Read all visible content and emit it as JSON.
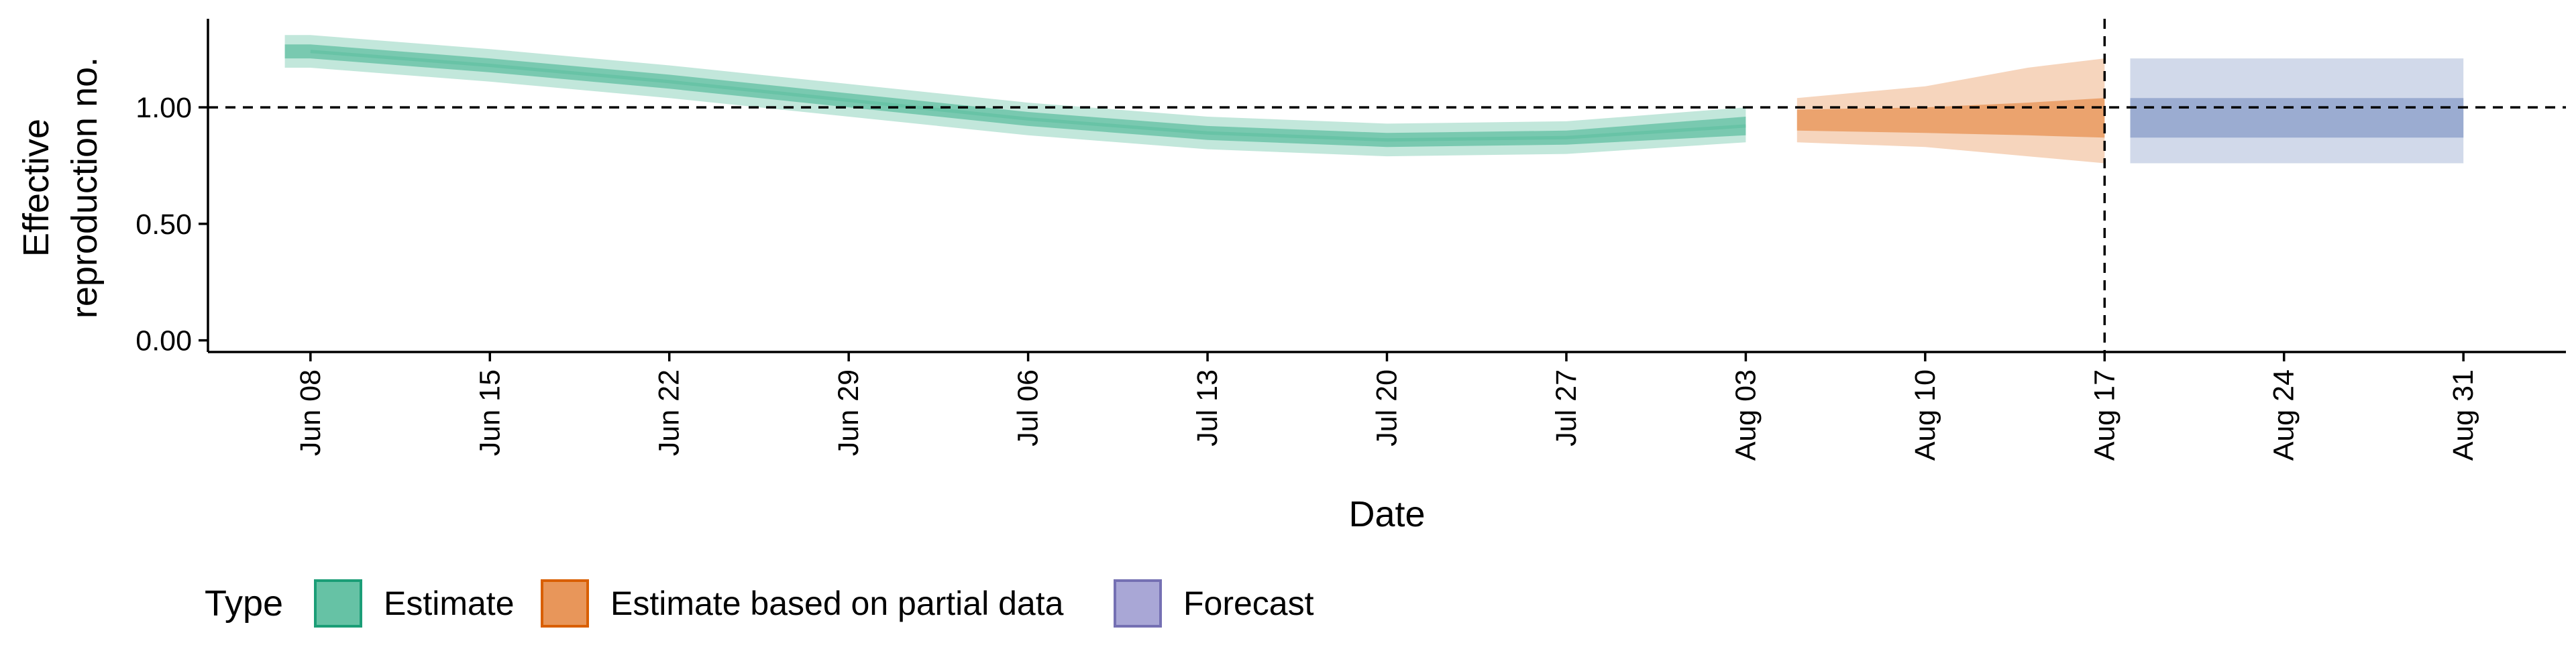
{
  "chart_data": {
    "type": "area",
    "xlabel": "Date",
    "ylabel": [
      "Effective",
      "reproduction no."
    ],
    "x_ticks": [
      "2020-06-08",
      "2020-06-15",
      "2020-06-22",
      "2020-06-29",
      "2020-07-06",
      "2020-07-13",
      "2020-07-20",
      "2020-07-27",
      "2020-08-03",
      "2020-08-10",
      "2020-08-17",
      "2020-08-24",
      "2020-08-31"
    ],
    "x_tick_labels": [
      "Jun 08",
      "Jun 15",
      "Jun 22",
      "Jun 29",
      "Jul 06",
      "Jul 13",
      "Jul 20",
      "Jul 27",
      "Aug 03",
      "Aug 10",
      "Aug 17",
      "Aug 24",
      "Aug 31"
    ],
    "y_ticks": [
      0.0,
      0.5,
      1.0
    ],
    "y_tick_labels": [
      "0.00",
      "0.50",
      "1.00"
    ],
    "xlim": [
      "2020-06-04",
      "2020-09-04"
    ],
    "ylim": [
      -0.05,
      1.38
    ],
    "reference_line_y": 1.0,
    "reference_line_x": "2020-08-17",
    "legend_position": "bottom-left",
    "legend_title": "Type",
    "series": [
      {
        "name": "Estimate",
        "color": "#66C2A5",
        "points": [
          {
            "x": "2020-06-08",
            "median": 1.24,
            "lower50": 1.21,
            "upper50": 1.27,
            "lower90": 1.17,
            "upper90": 1.31
          },
          {
            "x": "2020-06-15",
            "median": 1.18,
            "lower50": 1.15,
            "upper50": 1.21,
            "lower90": 1.11,
            "upper90": 1.25
          },
          {
            "x": "2020-06-22",
            "median": 1.11,
            "lower50": 1.08,
            "upper50": 1.14,
            "lower90": 1.04,
            "upper90": 1.18
          },
          {
            "x": "2020-06-29",
            "median": 1.03,
            "lower50": 1.0,
            "upper50": 1.06,
            "lower90": 0.96,
            "upper90": 1.1
          },
          {
            "x": "2020-07-06",
            "median": 0.95,
            "lower50": 0.92,
            "upper50": 0.98,
            "lower90": 0.88,
            "upper90": 1.02
          },
          {
            "x": "2020-07-13",
            "median": 0.89,
            "lower50": 0.86,
            "upper50": 0.92,
            "lower90": 0.82,
            "upper90": 0.96
          },
          {
            "x": "2020-07-20",
            "median": 0.86,
            "lower50": 0.83,
            "upper50": 0.89,
            "lower90": 0.79,
            "upper90": 0.93
          },
          {
            "x": "2020-07-27",
            "median": 0.87,
            "lower50": 0.84,
            "upper50": 0.9,
            "lower90": 0.8,
            "upper90": 0.94
          },
          {
            "x": "2020-08-03",
            "median": 0.92,
            "lower50": 0.88,
            "upper50": 0.96,
            "lower90": 0.85,
            "upper90": 1.0
          }
        ]
      },
      {
        "name": "Estimate based on partial data",
        "color": "#E8965A",
        "points": [
          {
            "x": "2020-08-05",
            "median": 0.94,
            "lower50": 0.9,
            "upper50": 0.99,
            "lower90": 0.85,
            "upper90": 1.04
          },
          {
            "x": "2020-08-10",
            "median": 0.95,
            "lower50": 0.89,
            "upper50": 1.0,
            "lower90": 0.83,
            "upper90": 1.09
          },
          {
            "x": "2020-08-14",
            "median": 0.95,
            "lower50": 0.88,
            "upper50": 1.02,
            "lower90": 0.79,
            "upper90": 1.17
          },
          {
            "x": "2020-08-17",
            "median": 0.95,
            "lower50": 0.87,
            "upper50": 1.04,
            "lower90": 0.76,
            "upper90": 1.21
          }
        ]
      },
      {
        "name": "Forecast",
        "color": "#8DA0CB",
        "points": [
          {
            "x": "2020-08-18",
            "median": 0.95,
            "lower50": 0.87,
            "upper50": 1.04,
            "lower90": 0.76,
            "upper90": 1.21
          },
          {
            "x": "2020-08-31",
            "median": 0.95,
            "lower50": 0.87,
            "upper50": 1.04,
            "lower90": 0.76,
            "upper90": 1.21
          }
        ]
      }
    ]
  },
  "legend": {
    "title": "Type",
    "items": [
      {
        "label": "Estimate",
        "fill": "#66C2A5",
        "border": "#1B9E77"
      },
      {
        "label": "Estimate based on partial data",
        "fill": "#E8965A",
        "border": "#D95F02"
      },
      {
        "label": "Forecast",
        "fill": "#A9A7D6",
        "border": "#7570B3"
      }
    ]
  }
}
